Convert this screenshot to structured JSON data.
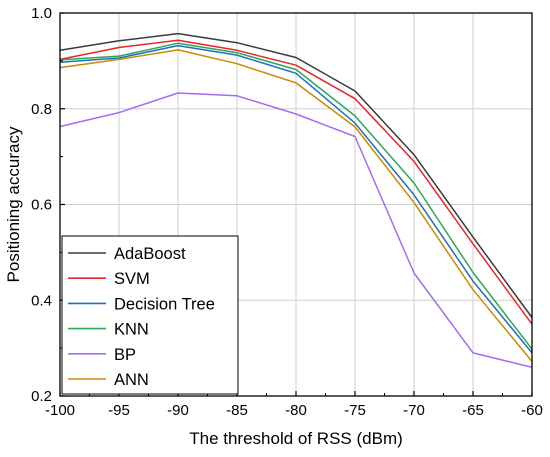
{
  "chart_data": {
    "type": "line",
    "xlabel": "The threshold of RSS (dBm)",
    "ylabel": "Positioning accuracy",
    "x": [
      -100,
      -95,
      -90,
      -85,
      -80,
      -75,
      -70,
      -65,
      -60
    ],
    "xlim": [
      -100,
      -60
    ],
    "ylim": [
      0.2,
      1.0
    ],
    "xticks": [
      "-100",
      "-95",
      "-90",
      "-85",
      "-80",
      "-75",
      "-70",
      "-65",
      "-60"
    ],
    "yticks": [
      "0.2",
      "0.4",
      "0.6",
      "0.8",
      "1.0"
    ],
    "grid": true,
    "legend_position": "bottom-left",
    "series": [
      {
        "name": "AdaBoost",
        "color": "#3a3a3a",
        "values": [
          0.922,
          0.942,
          0.957,
          0.938,
          0.907,
          0.837,
          0.704,
          0.532,
          0.364
        ]
      },
      {
        "name": "SVM",
        "color": "#e8262a",
        "values": [
          0.903,
          0.928,
          0.943,
          0.922,
          0.891,
          0.821,
          0.69,
          0.518,
          0.35
        ]
      },
      {
        "name": "Decision Tree",
        "color": "#1f6fbf",
        "values": [
          0.897,
          0.906,
          0.932,
          0.912,
          0.874,
          0.77,
          0.62,
          0.44,
          0.29
        ]
      },
      {
        "name": "KNN",
        "color": "#2ca65a",
        "values": [
          0.902,
          0.91,
          0.937,
          0.917,
          0.882,
          0.785,
          0.645,
          0.458,
          0.298
        ]
      },
      {
        "name": "BP",
        "color": "#a56cf0",
        "values": [
          0.763,
          0.792,
          0.833,
          0.827,
          0.789,
          0.742,
          0.457,
          0.29,
          0.26
        ]
      },
      {
        "name": "ANN",
        "color": "#cc8a00",
        "values": [
          0.886,
          0.903,
          0.923,
          0.894,
          0.854,
          0.762,
          0.604,
          0.422,
          0.272
        ]
      }
    ]
  }
}
